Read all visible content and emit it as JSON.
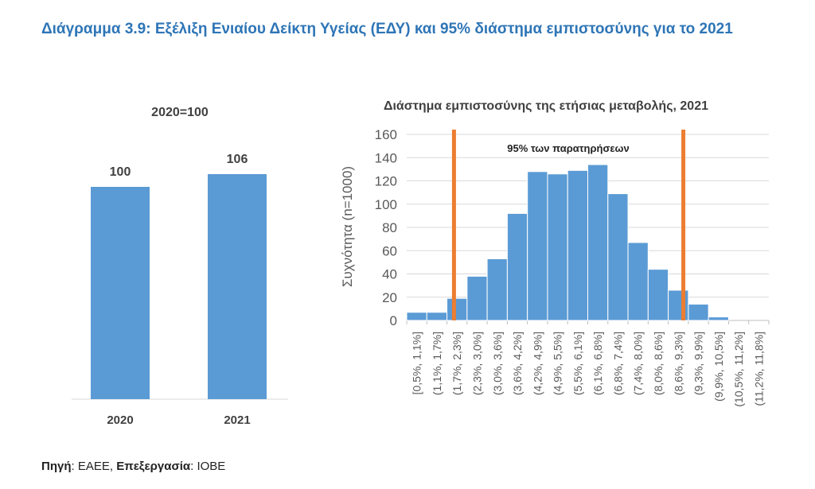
{
  "page_title": "Διάγραμμα 3.9: Εξέλιξη Ενιαίου Δείκτη Υγείας (ΕΔΥ) και 95% διάστημα εμπιστοσύνης για το 2021",
  "source": {
    "label1": "Πηγή",
    "text1": ": ΕΑΕΕ, ",
    "label2": "Επεξεργασία",
    "text2": ": ΙΟΒΕ"
  },
  "colors": {
    "bar": "#5b9bd5",
    "line": "#ed7d31",
    "grid": "#d9d9d9",
    "title": "#2e75b6"
  },
  "chart_data": [
    {
      "type": "bar",
      "title": "2020=100",
      "categories": [
        "2020",
        "2021"
      ],
      "values": [
        100,
        106
      ],
      "data_labels": [
        "100",
        "106"
      ],
      "grid": false,
      "legend": "none"
    },
    {
      "type": "bar",
      "title": "Διάστημα εμπιστοσύνης της ετήσιας μεταβολής, 2021",
      "ylabel": "Συχνότητα (n=1000)",
      "ylim": [
        0,
        160
      ],
      "yticks": [
        0,
        20,
        40,
        60,
        80,
        100,
        120,
        140,
        160
      ],
      "categories": [
        "[0,5%, 1,1%]",
        "(1,1%, 1,7%]",
        "(1,7%, 2,3%]",
        "(2,3%, 3,0%]",
        "(3,0%, 3,6%]",
        "(3,6%, 4,2%]",
        "(4,2%, 4,9%]",
        "(4,9%, 5,5%]",
        "(5,5%, 6,1%]",
        "(6,1%, 6,8%]",
        "(6,8%, 7,4%]",
        "(7,4%, 8,0%]",
        "(8,0%, 8,6%]",
        "(8,6%, 9,3%]",
        "(9,3%, 9,9%]",
        "(9,9%, 10,5%]",
        "(10,5%, 11,2%]",
        "(11,2%, 11,8%]"
      ],
      "values": [
        7,
        7,
        19,
        38,
        53,
        92,
        128,
        126,
        129,
        134,
        109,
        67,
        44,
        26,
        14,
        3,
        0,
        0
      ],
      "annotation": "95% των παρατηρήσεων",
      "interval_lines": [
        2.35,
        13.75
      ],
      "grid": true,
      "legend": "none"
    }
  ]
}
